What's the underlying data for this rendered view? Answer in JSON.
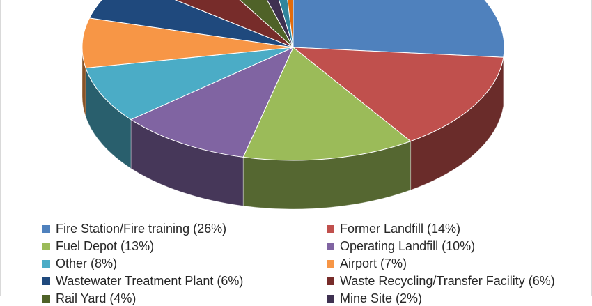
{
  "chart_data": {
    "type": "pie",
    "title": "",
    "legend_position": "bottom",
    "series": [
      {
        "name": "Fire Station/Fire training",
        "label": "Fire Station/Fire training (26%)",
        "value": 26,
        "color": "#4f81bd"
      },
      {
        "name": "Former Landfill",
        "label": "Former Landfill (14%)",
        "value": 14,
        "color": "#c0504d"
      },
      {
        "name": "Fuel Depot",
        "label": "Fuel Depot (13%)",
        "value": 13,
        "color": "#9bbb59"
      },
      {
        "name": "Operating Landfill",
        "label": "Operating Landfill (10%)",
        "value": 10,
        "color": "#8064a2"
      },
      {
        "name": "Other",
        "label": "Other (8%)",
        "value": 8,
        "color": "#4bacc6"
      },
      {
        "name": "Airport",
        "label": "Airport (7%)",
        "value": 7,
        "color": "#f79646"
      },
      {
        "name": "Wastewater Treatment Plant",
        "label": "Wastewater Treatment Plant (6%)",
        "value": 6,
        "color": "#1f497d"
      },
      {
        "name": "Waste Recycling/Transfer Facility",
        "label": "Waste Recycling/Transfer Facility (6%)",
        "value": 6,
        "color": "#772c2a"
      },
      {
        "name": "Rail Yard",
        "label": "Rail Yard (4%)",
        "value": 4,
        "color": "#4f6228"
      },
      {
        "name": "Mine Site",
        "label": "Mine Site (2%)",
        "value": 2,
        "color": "#3f3151"
      },
      {
        "name": "",
        "label": "",
        "value": 1.5,
        "color": "#31859c"
      },
      {
        "name": "",
        "label": "",
        "value": 1,
        "color": "#e46c0a"
      }
    ]
  }
}
